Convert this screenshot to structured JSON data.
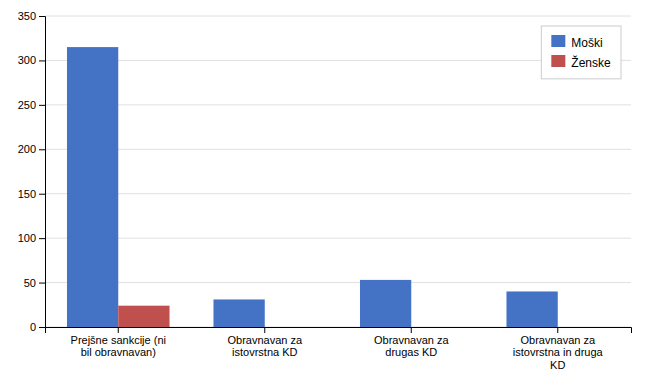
{
  "chart_data": {
    "type": "bar",
    "categories": [
      "Prejšne sankcije (ni\nbil obravnavan)",
      "Obravnavan za\nistovrstna KD",
      "Obravnavan za\ndrugas KD",
      "Obravnavan za\nistovrstna in druga\nKD"
    ],
    "series": [
      {
        "name": "Moški",
        "color": "#4472C4",
        "values": [
          315,
          31,
          53,
          40
        ]
      },
      {
        "name": "Ženske",
        "color": "#C0504D",
        "values": [
          24,
          0,
          0,
          0
        ]
      }
    ],
    "ylim": [
      0,
      350
    ],
    "yticks": [
      0,
      50,
      100,
      150,
      200,
      250,
      300,
      350
    ],
    "grid": true,
    "legend": "upper right"
  }
}
